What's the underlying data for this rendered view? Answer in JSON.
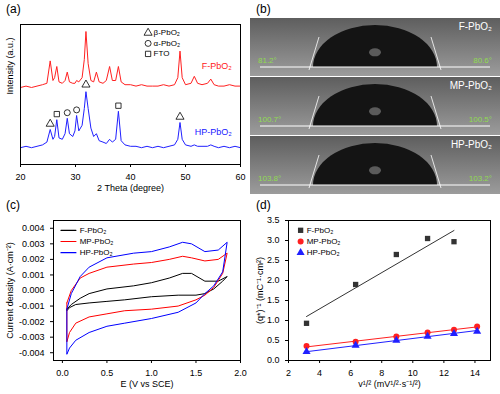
{
  "chart_data": [
    {
      "panel": "(a)",
      "type": "line",
      "xlabel": "2 Theta (degree)",
      "ylabel": "Intensity (a.u.)",
      "tick_labels": "x",
      "x": [
        20,
        21,
        22,
        23,
        24,
        24.8,
        25.4,
        25.9,
        26.2,
        26.6,
        27.0,
        27.6,
        28.1,
        28.5,
        28.9,
        29.5,
        29.9,
        30.2,
        30.6,
        31.2,
        31.6,
        31.9,
        32.3,
        32.8,
        33.3,
        33.8,
        34.3,
        35,
        35.6,
        36.2,
        36.7,
        37.3,
        37.8,
        38.3,
        39,
        40,
        41,
        42,
        43,
        44,
        45,
        46,
        47,
        48,
        48.6,
        49.0,
        49.4,
        50,
        51,
        51.6,
        52.2,
        53,
        54,
        54.6,
        55.2,
        56,
        57,
        58,
        59,
        60
      ],
      "series": [
        {
          "name": "F-PbO₂",
          "color": "#ff2020",
          "values": [
            55,
            56,
            55,
            56,
            57,
            58,
            74,
            60,
            62,
            70,
            59,
            58,
            60,
            66,
            59,
            58,
            58,
            60,
            59,
            62,
            75,
            95,
            72,
            60,
            59,
            66,
            59,
            58,
            60,
            70,
            60,
            60,
            70,
            59,
            57,
            57,
            56,
            57,
            56,
            56,
            56,
            57,
            56,
            57,
            62,
            81,
            62,
            57,
            58,
            63,
            58,
            57,
            58,
            61,
            57,
            56,
            56,
            57,
            56,
            56
          ]
        },
        {
          "name": "HP-PbO₂",
          "color": "#2020ff",
          "values": [
            12,
            13,
            12,
            13,
            14,
            16,
            25,
            18,
            20,
            32,
            19,
            18,
            22,
            33,
            22,
            20,
            24,
            35,
            24,
            28,
            40,
            52,
            40,
            26,
            20,
            22,
            17,
            16,
            15,
            18,
            16,
            18,
            38,
            17,
            14,
            13,
            13,
            12,
            13,
            12,
            13,
            12,
            13,
            14,
            18,
            30,
            18,
            14,
            13,
            14,
            13,
            13,
            13,
            14,
            13,
            12,
            13,
            12,
            13,
            12
          ]
        }
      ],
      "phases": [
        {
          "name": "β-PbO₂",
          "marker": "triangle"
        },
        {
          "name": "α-PbO₂",
          "marker": "circle"
        },
        {
          "name": "FTO",
          "marker": "square"
        }
      ],
      "peak_marks": [
        {
          "x": 25.4,
          "y": 29,
          "phase": "β-PbO₂"
        },
        {
          "x": 26.6,
          "y": 36,
          "phase": "FTO"
        },
        {
          "x": 28.5,
          "y": 37,
          "phase": "α-PbO₂"
        },
        {
          "x": 30.2,
          "y": 39,
          "phase": "α-PbO₂"
        },
        {
          "x": 31.9,
          "y": 57,
          "phase": "β-PbO₂"
        },
        {
          "x": 37.8,
          "y": 42,
          "phase": "FTO"
        },
        {
          "x": 49.0,
          "y": 34,
          "phase": "β-PbO₂"
        }
      ],
      "xlim": [
        20,
        60
      ],
      "xticks": [
        20,
        30,
        40,
        50,
        60
      ],
      "ylim": [
        0,
        100
      ]
    },
    {
      "panel": "(b)",
      "type": "image",
      "images": [
        {
          "name": "F-PbO₂",
          "angles": [
            "81.2°",
            "80.6°"
          ]
        },
        {
          "name": "MP-PbO₂",
          "angles": [
            "100.7°",
            "100.5°"
          ]
        },
        {
          "name": "HP-PbO₂",
          "angles": [
            "103.8°",
            "103.2°"
          ]
        }
      ]
    },
    {
      "panel": "(c)",
      "type": "line",
      "xlabel": "E (V vs SCE)",
      "ylabel": "Current density (A·cm⁻²)",
      "legend": "top-left",
      "series": [
        {
          "name": "F-PbO₂",
          "color": "#000000",
          "x": [
            0.05,
            0.1,
            0.2,
            0.3,
            0.5,
            0.8,
            1.0,
            1.2,
            1.35,
            1.45,
            1.6,
            1.75,
            1.85,
            1.8,
            1.7,
            1.6,
            1.5,
            1.3,
            1.0,
            0.7,
            0.5,
            0.3,
            0.15,
            0.08,
            0.05,
            0.05
          ],
          "values": [
            -0.0012,
            -0.0009,
            -0.0005,
            -0.0002,
            0.0001,
            0.0003,
            0.0005,
            0.0008,
            0.0011,
            0.0011,
            0.0006,
            0.0006,
            0.0009,
            0.0006,
            0.0001,
            -0.0002,
            -0.0003,
            -0.0003,
            -0.0004,
            -0.0006,
            -0.0007,
            -0.0008,
            -0.0009,
            -0.0011,
            -0.0013,
            -0.0012
          ]
        },
        {
          "name": "MP-PbO₂",
          "color": "#ff0000",
          "x": [
            0.05,
            0.1,
            0.2,
            0.3,
            0.5,
            0.8,
            1.0,
            1.2,
            1.35,
            1.45,
            1.6,
            1.75,
            1.85,
            1.8,
            1.7,
            1.6,
            1.5,
            1.3,
            1.0,
            0.7,
            0.5,
            0.3,
            0.15,
            0.08,
            0.05,
            0.05
          ],
          "values": [
            -0.0008,
            0.0,
            0.0008,
            0.0011,
            0.0015,
            0.0017,
            0.0018,
            0.002,
            0.0022,
            0.0021,
            0.0019,
            0.002,
            0.0024,
            0.0011,
            0.0002,
            -0.0003,
            -0.0006,
            -0.001,
            -0.0012,
            -0.0013,
            -0.0015,
            -0.0017,
            -0.0021,
            -0.0027,
            -0.0033,
            -0.0008
          ]
        },
        {
          "name": "HP-PbO₂",
          "color": "#0000ff",
          "x": [
            0.05,
            0.1,
            0.2,
            0.3,
            0.5,
            0.8,
            1.0,
            1.2,
            1.35,
            1.45,
            1.6,
            1.75,
            1.85,
            1.8,
            1.7,
            1.6,
            1.5,
            1.3,
            1.0,
            0.7,
            0.5,
            0.3,
            0.15,
            0.08,
            0.05,
            0.05
          ],
          "values": [
            -0.0012,
            -0.0002,
            0.0009,
            0.0015,
            0.0021,
            0.0024,
            0.0025,
            0.0028,
            0.0031,
            0.003,
            0.0025,
            0.0026,
            0.0031,
            0.0012,
            0.0003,
            -0.0002,
            -0.0008,
            -0.0014,
            -0.0018,
            -0.0021,
            -0.0023,
            -0.0027,
            -0.0032,
            -0.0037,
            -0.0041,
            -0.0012
          ]
        }
      ],
      "xlim": [
        -0.1,
        2.0
      ],
      "xticks": [
        {
          "value": 0,
          "label": "0.0"
        },
        0.5,
        {
          "value": 1,
          "label": "1.0"
        },
        1.5,
        {
          "value": 2,
          "label": "2.0"
        }
      ],
      "ylim": [
        -0.0045,
        0.0045
      ],
      "yticks": [
        -0.004,
        -0.003,
        -0.002,
        -0.001,
        {
          "value": 0,
          "label": "0.000"
        },
        0.001,
        0.002,
        0.003,
        0.004
      ]
    },
    {
      "panel": "(d)",
      "type": "scatter",
      "xlabel": "v¹/² (mV¹/²·s⁻¹/²)",
      "ylabel": "(q*)⁻¹ (mC⁻¹·cm²)",
      "legend": "top-left",
      "series": [
        {
          "name": "F-PbO₂",
          "color": "#333333",
          "marker": "square",
          "x": [
            3.16,
            6.32,
            8.94,
            10.95,
            12.65
          ],
          "values": [
            0.93,
            1.9,
            2.65,
            3.05,
            2.97
          ],
          "fit": {
            "x": [
              3.16,
              12.65
            ],
            "values": [
              1.1,
              3.25
            ]
          }
        },
        {
          "name": "MP-PbO₂",
          "color": "#ff2020",
          "marker": "circle",
          "x": [
            3.16,
            6.32,
            8.94,
            10.95,
            12.65,
            14.14
          ],
          "values": [
            0.36,
            0.47,
            0.6,
            0.7,
            0.77,
            0.85
          ],
          "fit": {
            "x": [
              3.16,
              14.14
            ],
            "values": [
              0.34,
              0.84
            ]
          }
        },
        {
          "name": "HP-PbO₂",
          "color": "#2020ff",
          "marker": "triangle",
          "x": [
            3.16,
            6.32,
            8.94,
            10.95,
            12.65,
            14.14
          ],
          "values": [
            0.22,
            0.38,
            0.5,
            0.6,
            0.67,
            0.73
          ],
          "fit": {
            "x": [
              3.16,
              14.14
            ],
            "values": [
              0.22,
              0.75
            ]
          }
        }
      ],
      "xlim": [
        2,
        15
      ],
      "xticks": [
        2,
        4,
        6,
        8,
        10,
        12,
        14
      ],
      "ylim": [
        0,
        3.5
      ],
      "yticks": [
        {
          "value": 0,
          "label": "0.0"
        },
        0.5,
        {
          "value": 1,
          "label": "1.0"
        },
        1.5,
        {
          "value": 2,
          "label": "2.0"
        },
        2.5,
        {
          "value": 3,
          "label": "3.0"
        },
        3.5
      ]
    }
  ]
}
